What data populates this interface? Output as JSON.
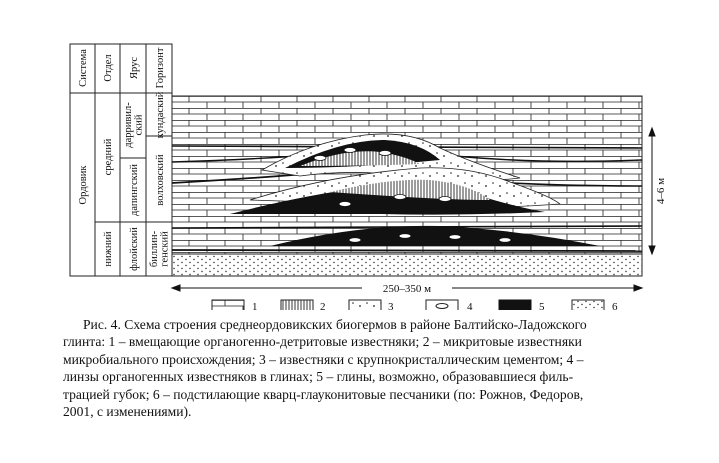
{
  "table": {
    "headers": [
      "Система",
      "Отдел",
      "Ярус",
      "Горизонт"
    ],
    "system": "Ордовик",
    "series": [
      "средний",
      "нижний"
    ],
    "stages": [
      "дарривил-\nский",
      "дапингский",
      "флойский"
    ],
    "horizons": [
      "кундаский",
      "волховский",
      "биллин-\nгенский"
    ]
  },
  "dimensions": {
    "thickness": "4–6 м",
    "width": "250–350 м"
  },
  "legend": [
    "1",
    "2",
    "3",
    "4",
    "5",
    "6"
  ],
  "caption": [
    "Рис. 4. Схема строения среднеордовикских биогермов в районе Балтийско-Ладожского",
    "глинта: 1 – вмещающие органогенно-детритовые известняки; 2 – микритовые известняки",
    "микробиального происхождения; 3 – известняки с крупнокристаллическим цементом; 4 –",
    "линзы органогенных известняков в глинах; 5 – глины, возможно, образовавшиеся филь-",
    "трацией губок; 6 – подстилающие кварц-глауконитовые песчаники (по: Рожнов, Федоров,",
    "2001, с изменениями)."
  ]
}
